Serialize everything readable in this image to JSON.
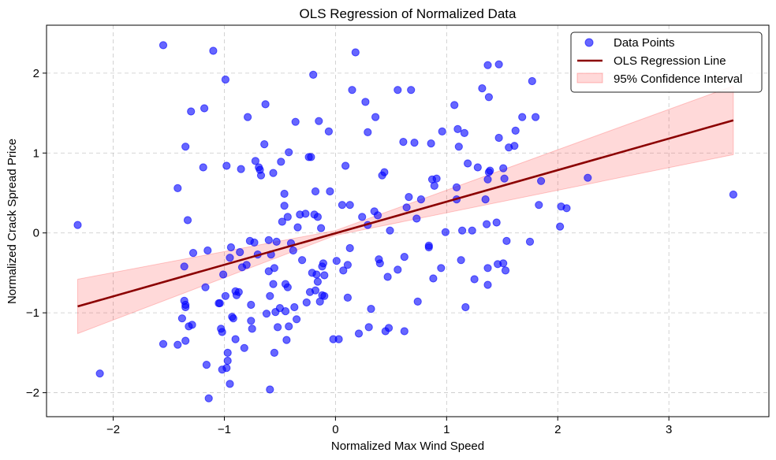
{
  "chart_data": {
    "type": "scatter",
    "title": "OLS Regression of Normalized Data",
    "xlabel": "Normalized Max Wind Speed",
    "ylabel": "Normalized Crack Spread Price",
    "xlim": [
      -2.6,
      3.9
    ],
    "ylim": [
      -2.3,
      2.6
    ],
    "xticks": [
      -2,
      -1,
      0,
      1,
      2,
      3
    ],
    "xtick_labels": [
      "−2",
      "−1",
      "0",
      "1",
      "2",
      "3"
    ],
    "yticks": [
      -2,
      -1,
      0,
      1,
      2
    ],
    "ytick_labels": [
      "−2",
      "−1",
      "0",
      "1",
      "2"
    ],
    "grid": true,
    "legend_position": "top-right",
    "legend": [
      {
        "label": "Data Points",
        "kind": "marker",
        "color": "#0000ff"
      },
      {
        "label": "OLS Regression Line",
        "kind": "line",
        "color": "#8b0000"
      },
      {
        "label": "95% Confidence Interval",
        "kind": "patch",
        "color": "#ff9999"
      }
    ],
    "regression_line": {
      "name": "OLS Regression Line",
      "color": "#8b0000",
      "x": [
        -2.32,
        3.58
      ],
      "y": [
        -0.92,
        1.41
      ]
    },
    "confidence_interval": {
      "name": "95% Confidence Interval",
      "color": "#ff0000",
      "x": [
        -2.32,
        0.0,
        3.58
      ],
      "lower": [
        -1.26,
        -0.03,
        0.98
      ],
      "upper": [
        -0.58,
        0.03,
        1.84
      ]
    },
    "series": [
      {
        "name": "Data Points",
        "color": "#0000ff",
        "points": [
          [
            -2.32,
            0.1
          ],
          [
            -2.12,
            -1.76
          ],
          [
            -1.55,
            2.35
          ],
          [
            -1.55,
            -1.39
          ],
          [
            -1.42,
            0.56
          ],
          [
            -1.42,
            -1.4
          ],
          [
            -1.38,
            -1.07
          ],
          [
            -1.36,
            -0.42
          ],
          [
            -1.36,
            -0.85
          ],
          [
            -1.35,
            1.08
          ],
          [
            -1.35,
            -0.9
          ],
          [
            -1.35,
            -0.93
          ],
          [
            -1.35,
            -1.35
          ],
          [
            -1.33,
            0.16
          ],
          [
            -1.32,
            -1.17
          ],
          [
            -1.3,
            1.52
          ],
          [
            -1.29,
            -1.15
          ],
          [
            -1.28,
            -0.25
          ],
          [
            -1.19,
            0.82
          ],
          [
            -1.18,
            1.56
          ],
          [
            -1.17,
            -0.68
          ],
          [
            -1.16,
            -1.65
          ],
          [
            -1.15,
            -0.22
          ],
          [
            -1.14,
            -2.07
          ],
          [
            -1.1,
            2.28
          ],
          [
            -1.05,
            -0.88
          ],
          [
            -1.04,
            -0.88
          ],
          [
            -1.03,
            -1.2
          ],
          [
            -1.02,
            -1.71
          ],
          [
            -1.02,
            -1.24
          ],
          [
            -1.01,
            -0.52
          ],
          [
            -0.99,
            1.92
          ],
          [
            -0.99,
            -0.79
          ],
          [
            -0.98,
            0.84
          ],
          [
            -0.98,
            -1.69
          ],
          [
            -0.97,
            -1.6
          ],
          [
            -0.97,
            -1.5
          ],
          [
            -0.95,
            -1.89
          ],
          [
            -0.95,
            -0.31
          ],
          [
            -0.94,
            -0.18
          ],
          [
            -0.93,
            -1.05
          ],
          [
            -0.92,
            -1.07
          ],
          [
            -0.9,
            -0.73
          ],
          [
            -0.9,
            -1.33
          ],
          [
            -0.89,
            -0.78
          ],
          [
            -0.87,
            -0.74
          ],
          [
            -0.86,
            -0.24
          ],
          [
            -0.85,
            0.8
          ],
          [
            -0.84,
            -0.43
          ],
          [
            -0.82,
            -1.44
          ],
          [
            -0.8,
            -0.4
          ],
          [
            -0.79,
            1.45
          ],
          [
            -0.77,
            -0.1
          ],
          [
            -0.76,
            -0.9
          ],
          [
            -0.76,
            -1.1
          ],
          [
            -0.75,
            -1.2
          ],
          [
            -0.73,
            -0.12
          ],
          [
            -0.72,
            0.9
          ],
          [
            -0.7,
            -0.27
          ],
          [
            -0.69,
            0.82
          ],
          [
            -0.68,
            0.79
          ],
          [
            -0.67,
            0.72
          ],
          [
            -0.64,
            1.11
          ],
          [
            -0.63,
            1.61
          ],
          [
            -0.62,
            -1.01
          ],
          [
            -0.6,
            -0.09
          ],
          [
            -0.6,
            -0.48
          ],
          [
            -0.59,
            -0.79
          ],
          [
            -0.59,
            -1.96
          ],
          [
            -0.58,
            -0.27
          ],
          [
            -0.56,
            0.75
          ],
          [
            -0.56,
            -0.64
          ],
          [
            -0.55,
            -0.44
          ],
          [
            -0.55,
            -1.5
          ],
          [
            -0.54,
            -0.99
          ],
          [
            -0.53,
            -0.11
          ],
          [
            -0.52,
            -1.18
          ],
          [
            -0.5,
            -0.94
          ],
          [
            -0.49,
            0.89
          ],
          [
            -0.48,
            0.14
          ],
          [
            -0.46,
            0.49
          ],
          [
            -0.46,
            0.34
          ],
          [
            -0.45,
            -0.64
          ],
          [
            -0.45,
            -0.98
          ],
          [
            -0.44,
            -1.34
          ],
          [
            -0.43,
            0.2
          ],
          [
            -0.43,
            -0.68
          ],
          [
            -0.42,
            1.01
          ],
          [
            -0.42,
            -1.17
          ],
          [
            -0.4,
            -0.13
          ],
          [
            -0.38,
            -0.22
          ],
          [
            -0.37,
            -0.93
          ],
          [
            -0.36,
            1.39
          ],
          [
            -0.35,
            -1.08
          ],
          [
            -0.34,
            0.07
          ],
          [
            -0.32,
            0.23
          ],
          [
            -0.3,
            -0.34
          ],
          [
            -0.27,
            0.24
          ],
          [
            -0.26,
            -0.87
          ],
          [
            -0.24,
            0.95
          ],
          [
            -0.23,
            -0.74
          ],
          [
            -0.22,
            0.95
          ],
          [
            -0.21,
            -0.5
          ],
          [
            -0.2,
            1.98
          ],
          [
            -0.19,
            0.23
          ],
          [
            -0.18,
            0.52
          ],
          [
            -0.18,
            -0.72
          ],
          [
            -0.17,
            -0.52
          ],
          [
            -0.16,
            -0.61
          ],
          [
            -0.16,
            0.2
          ],
          [
            -0.15,
            1.4
          ],
          [
            -0.14,
            -0.86
          ],
          [
            -0.13,
            0.06
          ],
          [
            -0.12,
            -0.42
          ],
          [
            -0.12,
            -0.78
          ],
          [
            -0.11,
            -0.38
          ],
          [
            -0.1,
            -0.53
          ],
          [
            -0.1,
            -0.79
          ],
          [
            -0.06,
            1.27
          ],
          [
            -0.05,
            0.52
          ],
          [
            -0.02,
            -1.33
          ],
          [
            0.01,
            -0.35
          ],
          [
            0.03,
            -1.33
          ],
          [
            0.06,
            0.35
          ],
          [
            0.07,
            -0.47
          ],
          [
            0.09,
            0.84
          ],
          [
            0.11,
            -0.81
          ],
          [
            0.11,
            -0.4
          ],
          [
            0.13,
            -0.19
          ],
          [
            0.13,
            0.35
          ],
          [
            0.15,
            1.79
          ],
          [
            0.18,
            2.26
          ],
          [
            0.21,
            -1.26
          ],
          [
            0.24,
            0.2
          ],
          [
            0.27,
            1.64
          ],
          [
            0.29,
            0.1
          ],
          [
            0.29,
            1.26
          ],
          [
            0.3,
            -1.18
          ],
          [
            0.32,
            -0.95
          ],
          [
            0.35,
            0.27
          ],
          [
            0.36,
            1.45
          ],
          [
            0.38,
            0.22
          ],
          [
            0.39,
            -0.33
          ],
          [
            0.4,
            -0.38
          ],
          [
            0.42,
            0.72
          ],
          [
            0.44,
            0.76
          ],
          [
            0.45,
            -1.23
          ],
          [
            0.47,
            -0.55
          ],
          [
            0.48,
            -1.19
          ],
          [
            0.49,
            0.03
          ],
          [
            0.56,
            -0.46
          ],
          [
            0.56,
            1.79
          ],
          [
            0.61,
            1.14
          ],
          [
            0.62,
            -1.23
          ],
          [
            0.62,
            -0.3
          ],
          [
            0.64,
            0.32
          ],
          [
            0.66,
            0.45
          ],
          [
            0.68,
            1.79
          ],
          [
            0.71,
            1.13
          ],
          [
            0.73,
            0.18
          ],
          [
            0.74,
            -0.86
          ],
          [
            0.77,
            0.42
          ],
          [
            0.84,
            -0.16
          ],
          [
            0.84,
            -0.18
          ],
          [
            0.86,
            1.12
          ],
          [
            0.87,
            0.67
          ],
          [
            0.88,
            -0.57
          ],
          [
            0.89,
            0.59
          ],
          [
            0.91,
            0.68
          ],
          [
            0.95,
            -0.44
          ],
          [
            0.96,
            1.27
          ],
          [
            0.99,
            0.01
          ],
          [
            1.07,
            1.6
          ],
          [
            1.09,
            0.57
          ],
          [
            1.09,
            0.42
          ],
          [
            1.1,
            1.3
          ],
          [
            1.11,
            1.08
          ],
          [
            1.13,
            -0.34
          ],
          [
            1.14,
            0.03
          ],
          [
            1.16,
            1.25
          ],
          [
            1.17,
            -0.93
          ],
          [
            1.19,
            0.87
          ],
          [
            1.23,
            0.03
          ],
          [
            1.25,
            -0.58
          ],
          [
            1.28,
            0.82
          ],
          [
            1.32,
            1.81
          ],
          [
            1.35,
            0.42
          ],
          [
            1.36,
            0.11
          ],
          [
            1.37,
            0.67
          ],
          [
            1.37,
            -0.44
          ],
          [
            1.37,
            -0.65
          ],
          [
            1.37,
            2.1
          ],
          [
            1.38,
            1.7
          ],
          [
            1.38,
            0.76
          ],
          [
            1.39,
            0.78
          ],
          [
            1.45,
            0.13
          ],
          [
            1.46,
            -0.39
          ],
          [
            1.47,
            2.11
          ],
          [
            1.47,
            1.19
          ],
          [
            1.51,
            -0.38
          ],
          [
            1.51,
            0.81
          ],
          [
            1.52,
            0.68
          ],
          [
            1.53,
            -0.47
          ],
          [
            1.54,
            -0.1
          ],
          [
            1.56,
            1.07
          ],
          [
            1.61,
            1.09
          ],
          [
            1.62,
            1.28
          ],
          [
            1.68,
            1.45
          ],
          [
            1.75,
            -0.11
          ],
          [
            1.77,
            1.9
          ],
          [
            1.8,
            1.45
          ],
          [
            1.83,
            0.35
          ],
          [
            1.85,
            0.65
          ],
          [
            2.02,
            0.08
          ],
          [
            2.03,
            0.33
          ],
          [
            2.08,
            0.31
          ],
          [
            2.27,
            0.69
          ],
          [
            3.58,
            0.48
          ]
        ]
      }
    ]
  }
}
